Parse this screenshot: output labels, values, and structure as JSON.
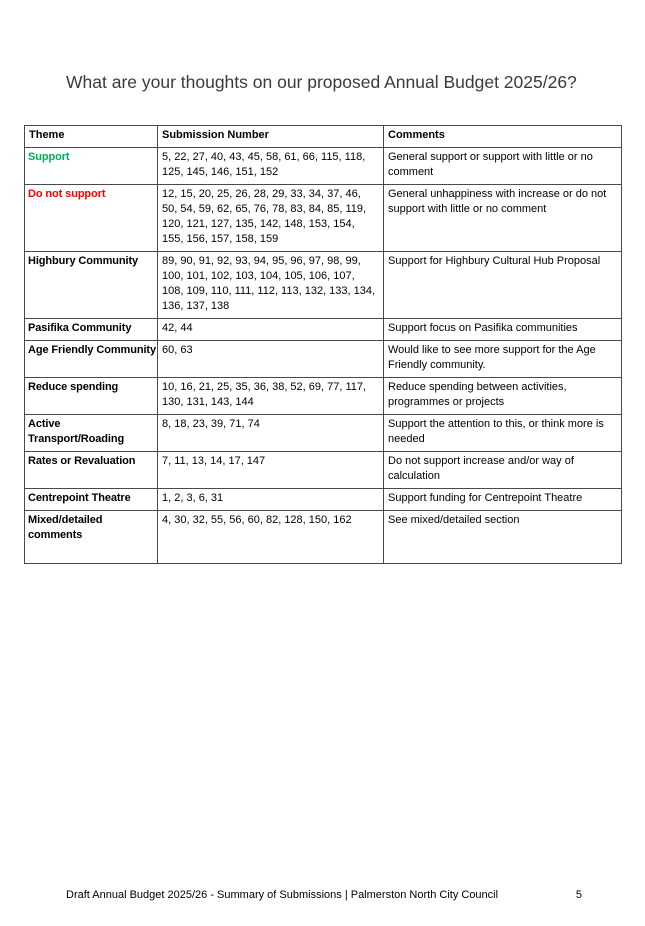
{
  "page": {
    "title": "What are your thoughts on our proposed Annual Budget 2025/26?"
  },
  "colors": {
    "support_green": "#00B050",
    "do_not_support_red": "#FF0000",
    "title_gray": "#3B3B3B"
  },
  "table": {
    "headers": {
      "theme": "Theme",
      "submission_number": "Submission Number",
      "comments": "Comments"
    },
    "rows": [
      {
        "theme": "Support",
        "theme_color": "#00B050",
        "submissions": "5, 22, 27, 40, 43, 45, 58, 61, 66, 115, 118, 125, 145, 146, 151, 152",
        "comments": "General support or support with little or no comment"
      },
      {
        "theme": "Do not support",
        "theme_color": "#FF0000",
        "submissions": "12, 15, 20, 25, 26, 28, 29, 33, 34, 37, 46, 50, 54, 59, 62, 65, 76, 78, 83, 84, 85, 119, 120, 121, 127, 135, 142, 148, 153, 154, 155, 156, 157, 158, 159",
        "comments": "General unhappiness with increase or do not support with little or no comment"
      },
      {
        "theme": "Highbury Community",
        "submissions": "89, 90, 91, 92, 93, 94, 95, 96, 97, 98, 99, 100, 101, 102, 103, 104, 105, 106, 107, 108, 109, 110, 111, 112, 113, 132, 133, 134, 136, 137, 138",
        "comments": "Support for Highbury Cultural Hub Proposal"
      },
      {
        "theme": "Pasifika Community",
        "submissions": "42, 44",
        "comments": "Support focus on Pasifika communities"
      },
      {
        "theme": "Age Friendly Community",
        "submissions": "60, 63",
        "comments": "Would like to see more support for the Age Friendly community."
      },
      {
        "theme": "Reduce spending",
        "submissions": "10, 16, 21, 25, 35, 36, 38, 52, 69, 77, 117, 130, 131, 143, 144",
        "comments": "Reduce spending between activities, programmes or projects"
      },
      {
        "theme": "Active Transport/Roading",
        "submissions": "8, 18, 23, 39, 71, 74",
        "comments": "Support the attention to this, or think more is needed"
      },
      {
        "theme": "Rates or Revaluation",
        "submissions": "7, 11, 13, 14, 17, 147",
        "comments": "Do not support increase and/or way of calculation"
      },
      {
        "theme": "Centrepoint Theatre",
        "submissions": "1, 2, 3, 6, 31",
        "comments": "Support funding for Centrepoint Theatre"
      },
      {
        "theme": "Mixed/detailed comments",
        "submissions": "4, 30, 32, 55, 56, 60, 82, 128, 150, 162",
        "comments": "See mixed/detailed section"
      }
    ]
  },
  "footer": {
    "text": "Draft Annual Budget 2025/26 - Summary of Submissions | Palmerston North City Council",
    "page_number": "5"
  }
}
